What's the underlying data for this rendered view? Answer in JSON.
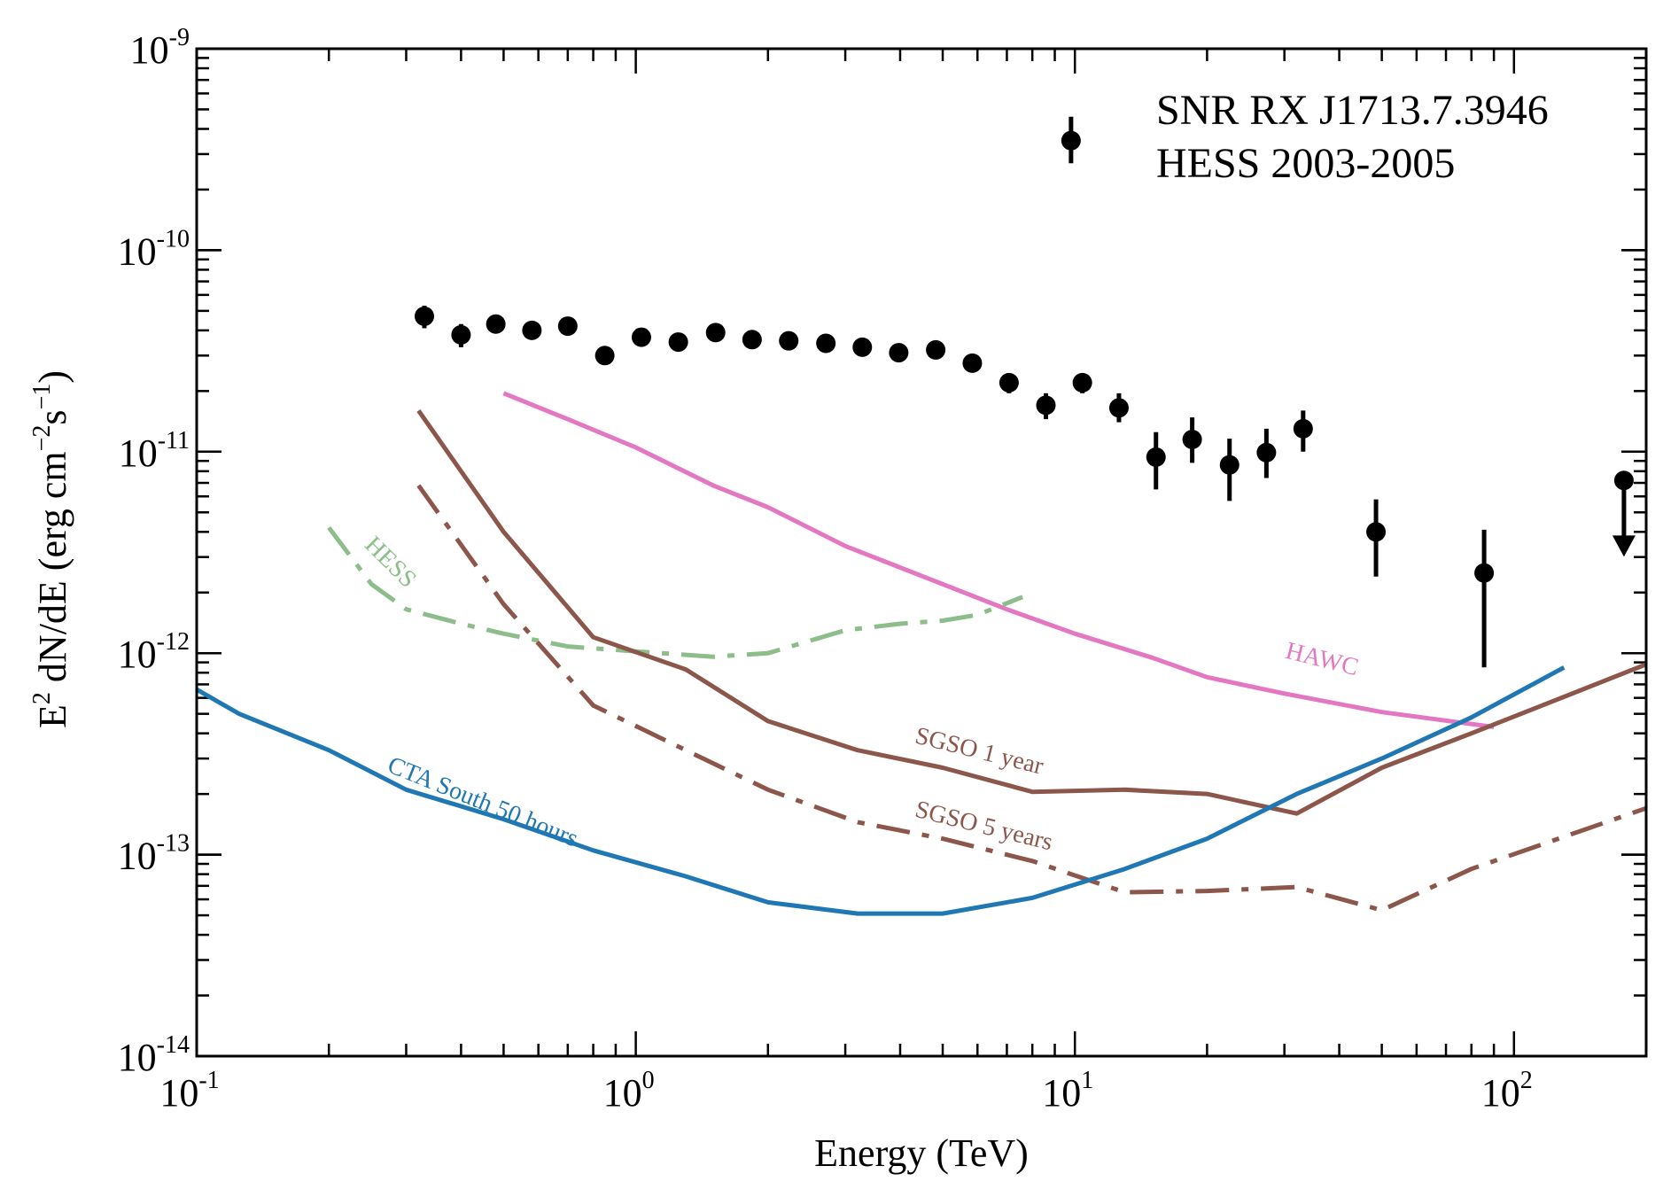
{
  "chart_data": {
    "type": "line",
    "title": "",
    "annotation": [
      "SNR RX J1713.7.3946",
      "HESS 2003-2005"
    ],
    "xlabel": "Energy (TeV)",
    "ylabel": {
      "main": "E",
      "sup": "2",
      "rest": " dN/dE  (erg cm",
      "exp1": "−2",
      "mid": "s",
      "exp2": "−1",
      "close": ")"
    },
    "xscale": "log",
    "yscale": "log",
    "xlim": [
      0.1,
      200
    ],
    "ylim": [
      1e-14,
      1e-09
    ],
    "x_ticks": [
      {
        "value": 0.1,
        "base": "10",
        "exp": "-1"
      },
      {
        "value": 1,
        "base": "10",
        "exp": "0"
      },
      {
        "value": 10,
        "base": "10",
        "exp": "1"
      },
      {
        "value": 100,
        "base": "10",
        "exp": "2"
      }
    ],
    "y_ticks": [
      {
        "value": 1e-14,
        "base": "10",
        "exp": "-14"
      },
      {
        "value": 1e-13,
        "base": "10",
        "exp": "-13"
      },
      {
        "value": 1e-12,
        "base": "10",
        "exp": "-12"
      },
      {
        "value": 1e-11,
        "base": "10",
        "exp": "-11"
      },
      {
        "value": 1e-10,
        "base": "10",
        "exp": "-10"
      },
      {
        "value": 1e-09,
        "base": "10",
        "exp": "-9"
      }
    ],
    "series": [
      {
        "name": "HESS 2003-2005 data",
        "style": "points",
        "color": "#000000",
        "points": [
          {
            "x": 0.33,
            "y": 4.7e-11,
            "lo": 4.1e-11,
            "hi": 5.3e-11
          },
          {
            "x": 0.4,
            "y": 3.8e-11,
            "lo": 3.3e-11,
            "hi": 4.3e-11
          },
          {
            "x": 0.48,
            "y": 4.3e-11,
            "lo": 3.9e-11,
            "hi": 4.7e-11
          },
          {
            "x": 0.58,
            "y": 4e-11,
            "lo": 3.7e-11,
            "hi": 4.3e-11
          },
          {
            "x": 0.7,
            "y": 4.2e-11,
            "lo": 3.9e-11,
            "hi": 4.5e-11
          },
          {
            "x": 0.85,
            "y": 3e-11,
            "lo": 2.8e-11,
            "hi": 3.2e-11
          },
          {
            "x": 1.03,
            "y": 3.7e-11,
            "lo": 3.5e-11,
            "hi": 3.9e-11
          },
          {
            "x": 1.25,
            "y": 3.5e-11,
            "lo": 3.3e-11,
            "hi": 3.7e-11
          },
          {
            "x": 1.52,
            "y": 3.9e-11,
            "lo": 3.7e-11,
            "hi": 4.1e-11
          },
          {
            "x": 1.84,
            "y": 3.6e-11,
            "lo": 3.4e-11,
            "hi": 3.8e-11
          },
          {
            "x": 2.23,
            "y": 3.55e-11,
            "lo": 3.35e-11,
            "hi": 3.75e-11
          },
          {
            "x": 2.71,
            "y": 3.45e-11,
            "lo": 3.25e-11,
            "hi": 3.65e-11
          },
          {
            "x": 3.28,
            "y": 3.3e-11,
            "lo": 3.1e-11,
            "hi": 3.5e-11
          },
          {
            "x": 3.97,
            "y": 3.1e-11,
            "lo": 2.9e-11,
            "hi": 3.3e-11
          },
          {
            "x": 4.82,
            "y": 3.2e-11,
            "lo": 3e-11,
            "hi": 3.4e-11
          },
          {
            "x": 5.84,
            "y": 2.75e-11,
            "lo": 2.55e-11,
            "hi": 2.95e-11
          },
          {
            "x": 7.08,
            "y": 2.2e-11,
            "lo": 1.95e-11,
            "hi": 2.45e-11
          },
          {
            "x": 8.59,
            "y": 1.7e-11,
            "lo": 1.45e-11,
            "hi": 1.95e-11
          },
          {
            "x": 10.4,
            "y": 2.2e-11,
            "lo": 1.95e-11,
            "hi": 2.45e-11
          },
          {
            "x": 12.6,
            "y": 1.65e-11,
            "lo": 1.4e-11,
            "hi": 1.95e-11
          },
          {
            "x": 15.3,
            "y": 9.4e-12,
            "lo": 6.5e-12,
            "hi": 1.25e-11
          },
          {
            "x": 18.5,
            "y": 1.15e-11,
            "lo": 8.8e-12,
            "hi": 1.48e-11
          },
          {
            "x": 22.5,
            "y": 8.6e-12,
            "lo": 5.7e-12,
            "hi": 1.16e-11
          },
          {
            "x": 27.3,
            "y": 9.9e-12,
            "lo": 7.4e-12,
            "hi": 1.3e-11
          },
          {
            "x": 33.1,
            "y": 1.3e-11,
            "lo": 1e-11,
            "hi": 1.6e-11
          },
          {
            "x": 48.5,
            "y": 4e-12,
            "lo": 2.4e-12,
            "hi": 5.8e-12
          },
          {
            "x": 85.5,
            "y": 2.5e-12,
            "lo": 8.5e-13,
            "hi": 4.1e-12
          },
          {
            "x": 9.8,
            "y": 3.5e-10,
            "lo": 2.7e-10,
            "hi": 4.6e-10
          }
        ],
        "upper_limits": [
          {
            "x": 178,
            "y": 7.2e-12,
            "arrow_to": 3.2e-12
          }
        ]
      },
      {
        "name": "HAWC",
        "style": "solid",
        "color": "#e377c2",
        "x": [
          0.5,
          0.7,
          1.0,
          1.5,
          2.0,
          3.0,
          5.0,
          7.0,
          10,
          15,
          20,
          30,
          50,
          90
        ],
        "y": [
          1.95e-11,
          1.45e-11,
          1.05e-11,
          6.8e-12,
          5.3e-12,
          3.4e-12,
          2.2e-12,
          1.65e-12,
          1.25e-12,
          9.5e-13,
          7.6e-13,
          6.3e-13,
          5.1e-13,
          4.3e-13
        ]
      },
      {
        "name": "HESS",
        "style": "dashdot",
        "color": "#8dbd8a",
        "x": [
          0.2,
          0.25,
          0.3,
          0.4,
          0.5,
          0.7,
          1.0,
          1.5,
          2.0,
          3.0,
          4.0,
          5.0,
          6.0,
          7.6
        ],
        "y": [
          4.2e-12,
          2.2e-12,
          1.65e-12,
          1.4e-12,
          1.25e-12,
          1.08e-12,
          1.02e-12,
          9.6e-13,
          1e-12,
          1.3e-12,
          1.4e-12,
          1.45e-12,
          1.55e-12,
          1.9e-12
        ]
      },
      {
        "name": "SGSO 1 year",
        "style": "solid",
        "color": "#8c564b",
        "x": [
          0.32,
          0.5,
          0.8,
          1.3,
          2.0,
          3.2,
          5.0,
          8.0,
          13,
          20,
          32,
          50,
          80,
          200
        ],
        "y": [
          1.6e-11,
          4e-12,
          1.2e-12,
          8.3e-13,
          4.6e-13,
          3.3e-13,
          2.7e-13,
          2.05e-13,
          2.1e-13,
          2e-13,
          1.6e-13,
          2.7e-13,
          4e-13,
          8.8e-13
        ]
      },
      {
        "name": "SGSO 5 years",
        "style": "dashdot",
        "color": "#8c564b",
        "x": [
          0.32,
          0.5,
          0.8,
          1.3,
          2.0,
          3.2,
          5.0,
          8.0,
          13,
          20,
          32,
          50,
          80,
          200
        ],
        "y": [
          6.8e-12,
          1.75e-12,
          5.5e-13,
          3.3e-13,
          2.1e-13,
          1.45e-13,
          1.2e-13,
          9.3e-14,
          6.5e-14,
          6.6e-14,
          6.9e-14,
          5.3e-14,
          8.5e-14,
          1.7e-13
        ]
      },
      {
        "name": "CTA South 50 hours",
        "style": "solid",
        "color": "#1f77b4",
        "x": [
          0.1,
          0.125,
          0.2,
          0.3,
          0.5,
          0.8,
          1.3,
          2.0,
          3.2,
          5.0,
          8.0,
          13,
          20,
          32,
          50,
          80,
          130
        ],
        "y": [
          6.6e-13,
          5e-13,
          3.3e-13,
          2.1e-13,
          1.5e-13,
          1.05e-13,
          7.8e-14,
          5.8e-14,
          5.1e-14,
          5.1e-14,
          6.1e-14,
          8.5e-14,
          1.2e-13,
          2e-13,
          3e-13,
          4.8e-13,
          8.5e-13
        ]
      }
    ],
    "curve_labels": [
      {
        "series": "HESS",
        "text": "HESS",
        "at_x": 0.24,
        "at_y": 3.4e-12,
        "angle": 45
      },
      {
        "series": "HAWC",
        "text": "HAWC",
        "at_x": 30,
        "at_y": 9.5e-13,
        "angle": 14
      },
      {
        "series": "SGSO 1 year",
        "text": "SGSO 1 year",
        "at_x": 4.3,
        "at_y": 3.6e-13,
        "angle": 14
      },
      {
        "series": "SGSO 5 years",
        "text": "SGSO 5 years",
        "at_x": 4.3,
        "at_y": 1.55e-13,
        "angle": 14
      },
      {
        "series": "CTA South 50 hours",
        "text": "CTA South 50 hours",
        "at_x": 0.27,
        "at_y": 2.6e-13,
        "angle": 22
      }
    ]
  }
}
